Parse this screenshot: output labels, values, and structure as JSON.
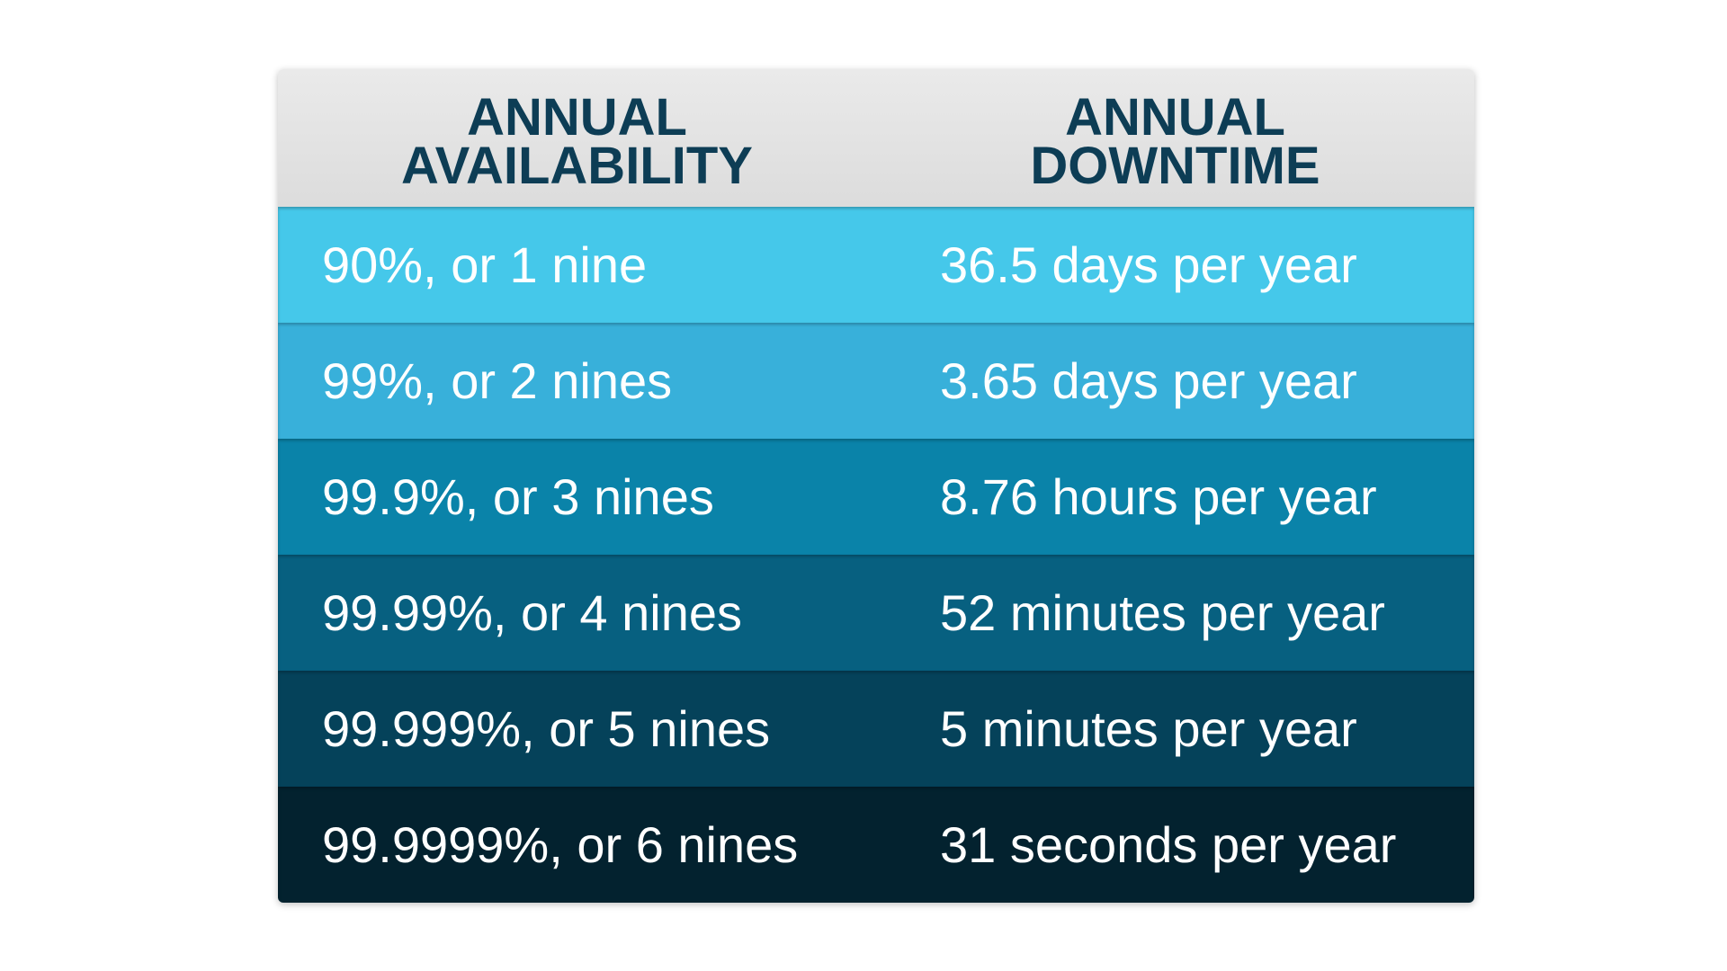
{
  "table": {
    "header": [
      "ANNUAL AVAILABILITY",
      "ANNUAL DOWNTIME"
    ],
    "rows": [
      [
        "90%, or 1 nine",
        "36.5 days per year"
      ],
      [
        "99%, or 2 nines",
        "3.65 days per year"
      ],
      [
        "99.9%, or 3 nines",
        "8.76 hours per year"
      ],
      [
        "99.99%, or 4 nines",
        "52 minutes per year"
      ],
      [
        "99.999%, or 5 nines",
        "5 minutes per year"
      ],
      [
        "99.9999%, or 6 nines",
        "31 seconds per year"
      ]
    ]
  }
}
